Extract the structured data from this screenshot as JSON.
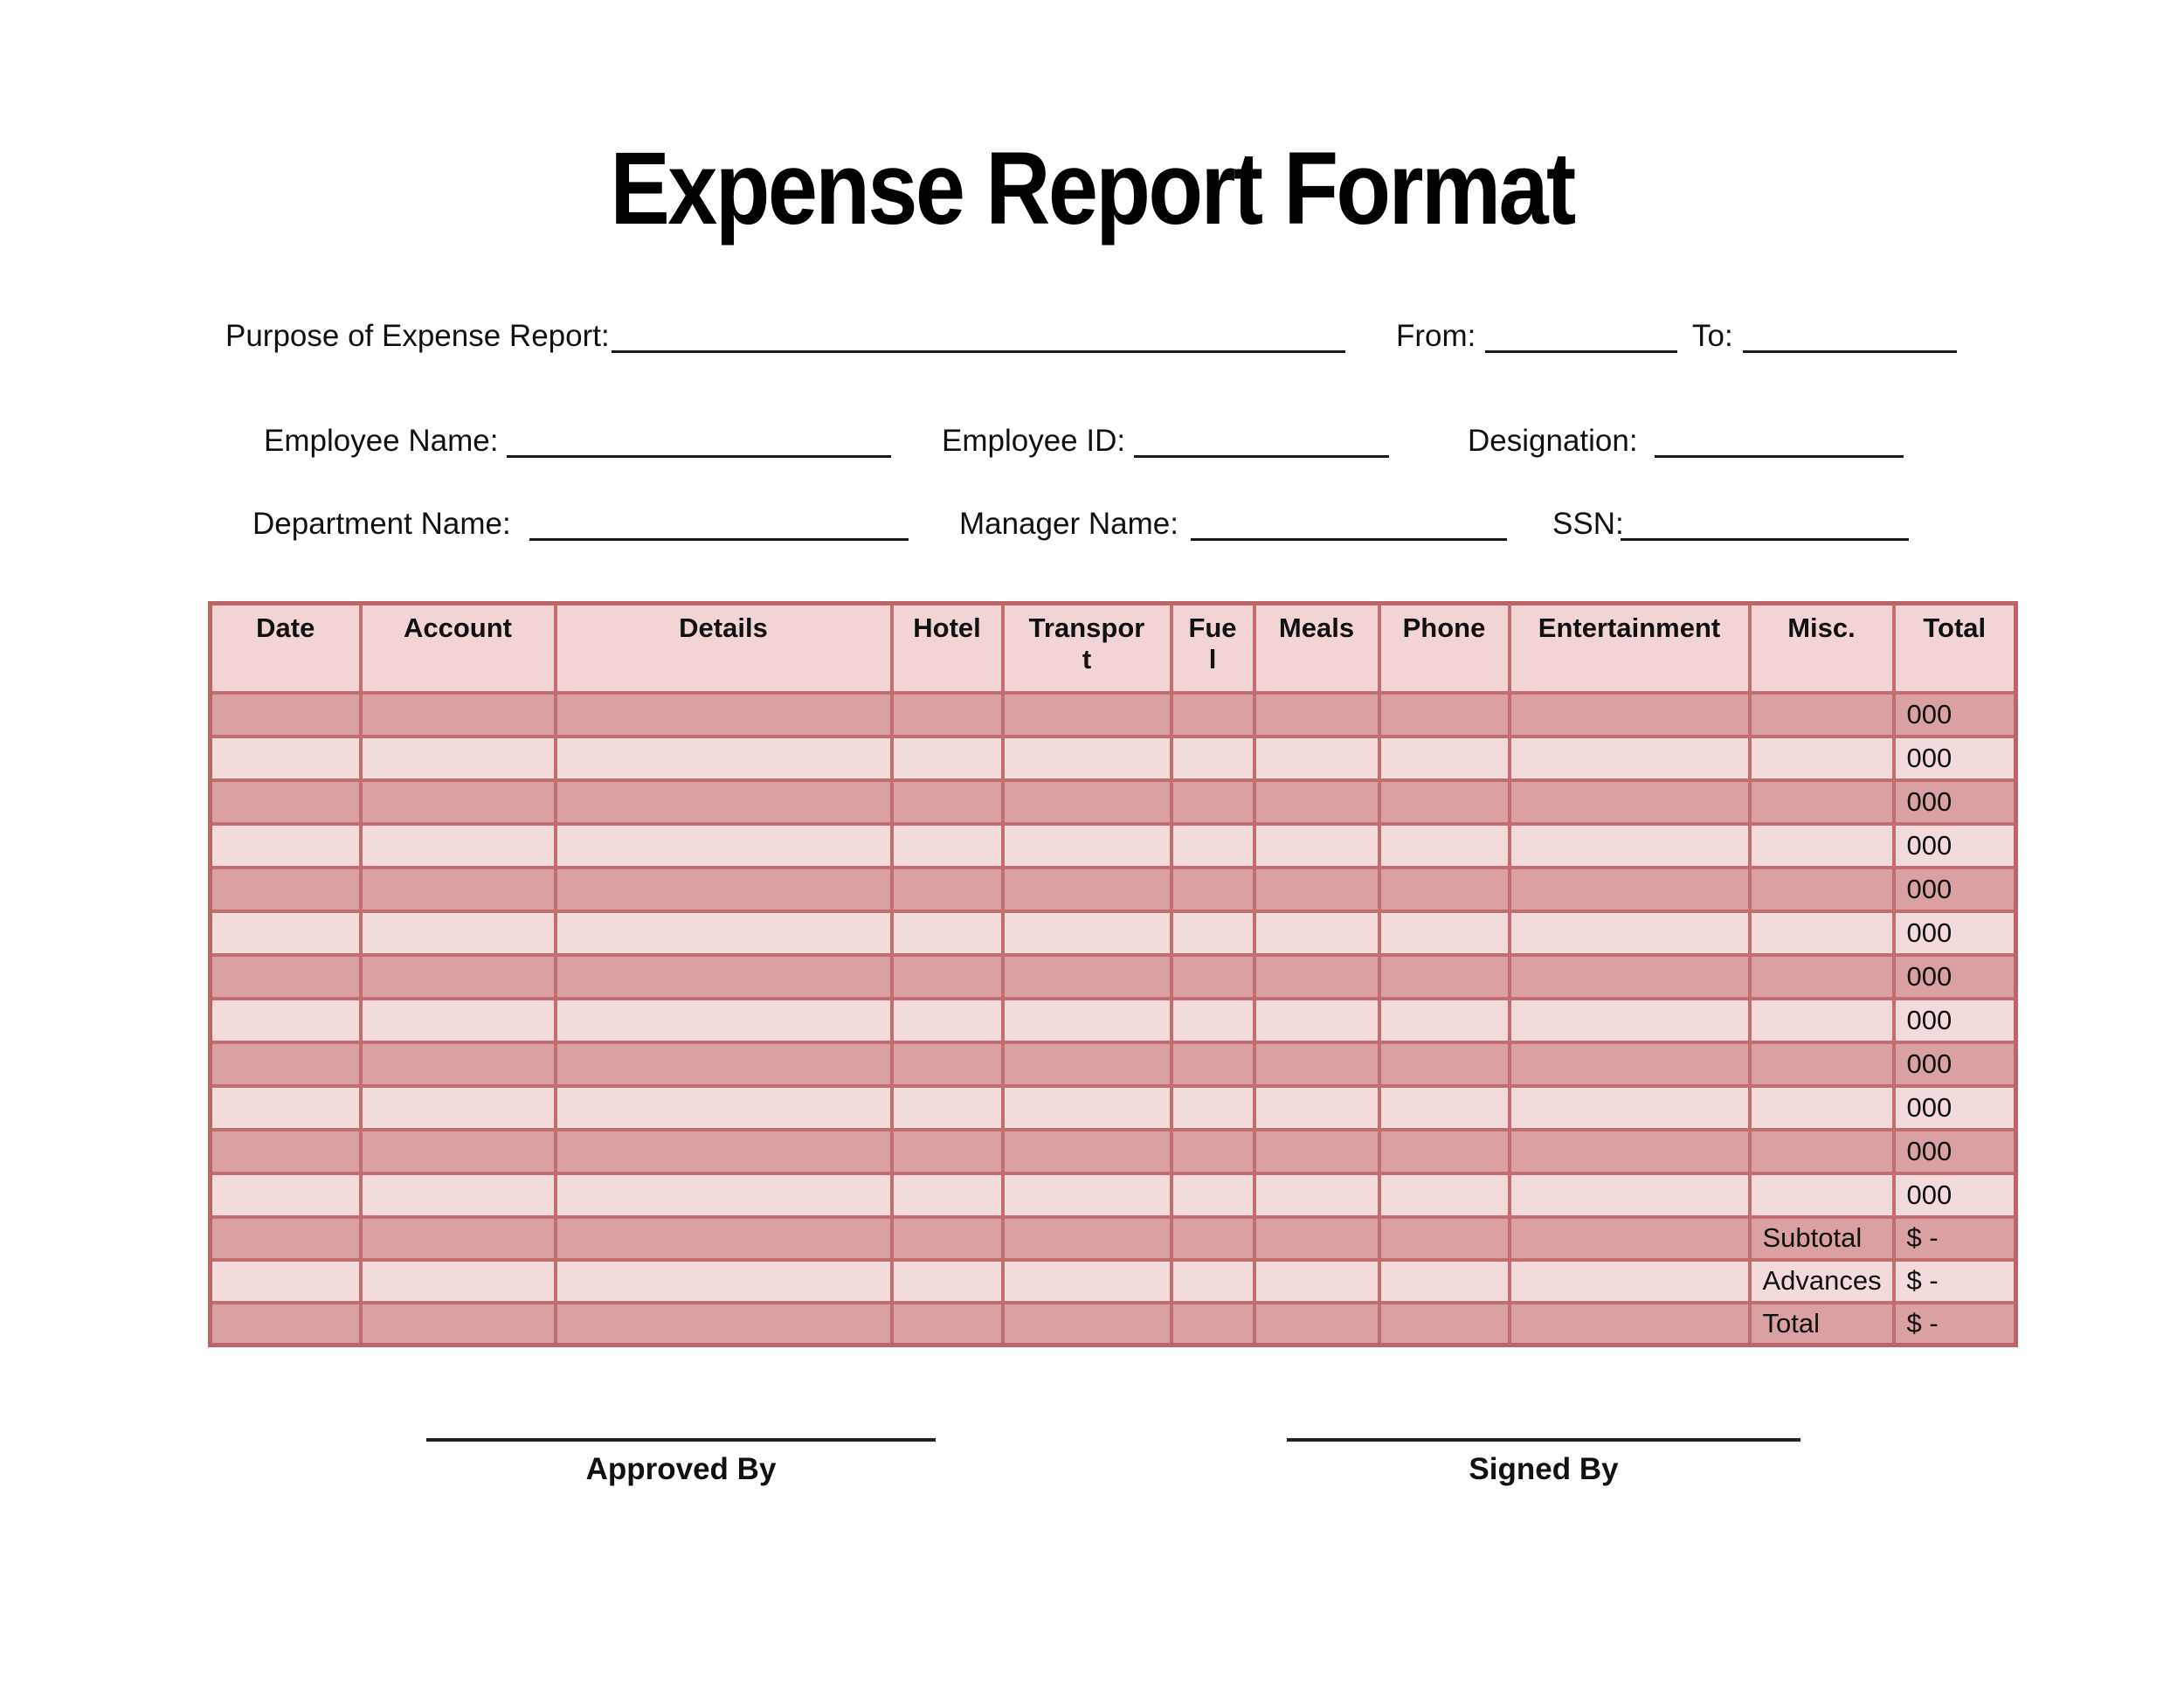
{
  "title": "Expense Report Format",
  "form": {
    "purpose_label": "Purpose of Expense Report:",
    "from_label": "From:",
    "to_label": "To:",
    "employee_name_label": "Employee Name:",
    "employee_id_label": "Employee ID:",
    "designation_label": "Designation:",
    "department_label": "Department Name:",
    "manager_label": "Manager Name:",
    "ssn_label": "SSN:"
  },
  "table": {
    "columns": [
      "Date",
      "Account",
      "Details",
      "Hotel",
      "Transpor\nt",
      "Fue\nl",
      "Meals",
      "Phone",
      "Entertainment",
      "Misc.",
      "Total"
    ],
    "data_rows": [
      {
        "total": "000"
      },
      {
        "total": "000"
      },
      {
        "total": "000"
      },
      {
        "total": "000"
      },
      {
        "total": "000"
      },
      {
        "total": "000"
      },
      {
        "total": "000"
      },
      {
        "total": "000"
      },
      {
        "total": "000"
      },
      {
        "total": "000"
      },
      {
        "total": "000"
      },
      {
        "total": "000"
      }
    ],
    "summary_rows": [
      {
        "label": "Subtotal",
        "value": "$ -"
      },
      {
        "label": "Advances",
        "value": "$ -"
      },
      {
        "label": "Total",
        "value": "$ -"
      }
    ]
  },
  "signatures": {
    "approved_label": "Approved By",
    "signed_label": "Signed By"
  },
  "colors": {
    "row_dark": "#dba0a2",
    "row_light": "#f3dbdb",
    "header_bg": "#f2d4d4",
    "grid_border": "#c26d6f",
    "text": "#111111"
  }
}
